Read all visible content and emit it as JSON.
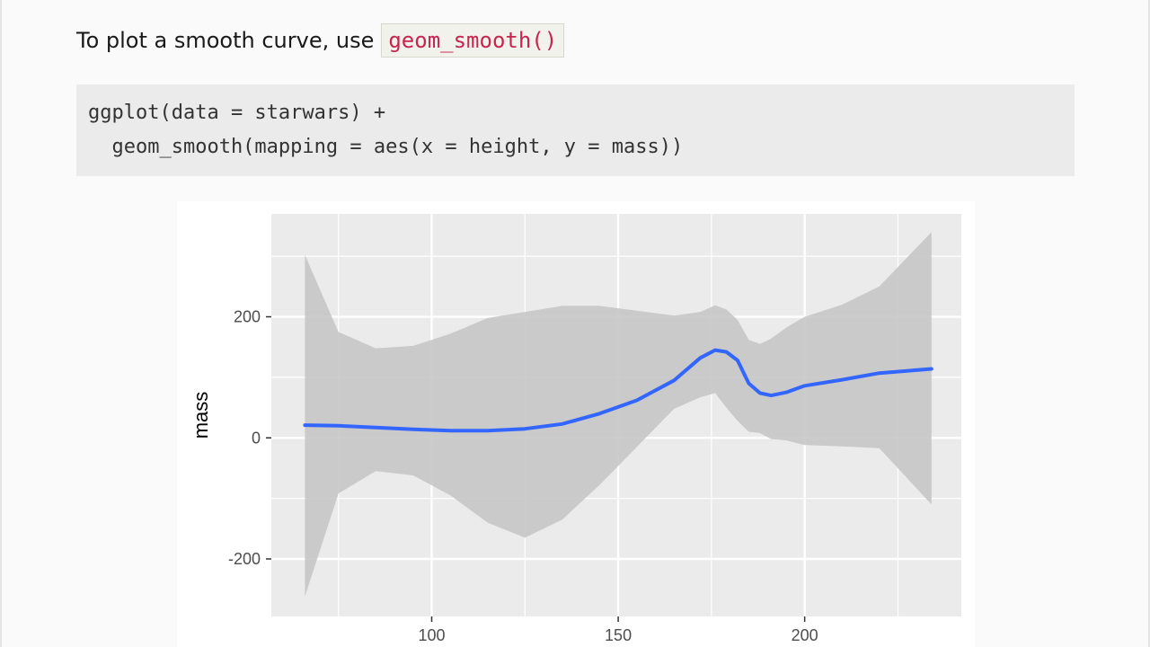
{
  "intro": {
    "text": "To plot a smooth curve, use",
    "code": "geom_smooth()"
  },
  "code_block": {
    "lines": [
      "ggplot(data = starwars) +",
      "  geom_smooth(mapping = aes(x = height, y = mass))"
    ]
  },
  "colors": {
    "panel": "#ebebeb",
    "grid": "#ffffff",
    "ribbon": "#c7c7c7",
    "line": "#3366ff",
    "inline_code_text": "#c7254e"
  },
  "chart_data": {
    "type": "line",
    "xlabel": "",
    "ylabel": "mass",
    "xlim": [
      57,
      242
    ],
    "ylim": [
      -295,
      370
    ],
    "x_ticks": [
      100,
      150,
      200
    ],
    "x_tick_labels": [
      "100",
      "150",
      "200"
    ],
    "y_ticks": [
      -200,
      0,
      200
    ],
    "y_tick_labels": [
      "-200",
      "0",
      "200"
    ],
    "grid": true,
    "series": [
      {
        "type": "smooth",
        "x": [
          66,
          75,
          85,
          95,
          105,
          115,
          125,
          135,
          145,
          155,
          165,
          172,
          176,
          179,
          182,
          185,
          188,
          191,
          195,
          200,
          210,
          220,
          234
        ],
        "y": [
          21,
          20,
          17,
          14,
          12,
          12,
          15,
          23,
          40,
          62,
          95,
          132,
          145,
          142,
          128,
          90,
          74,
          70,
          75,
          86,
          96,
          107,
          114
        ],
        "ymin": [
          -262,
          -92,
          -55,
          -62,
          -95,
          -140,
          -165,
          -135,
          -78,
          -15,
          48,
          67,
          74,
          50,
          28,
          10,
          8,
          -2,
          -4,
          -12,
          -14,
          -17,
          -110
        ],
        "ymax": [
          302,
          175,
          148,
          152,
          172,
          198,
          208,
          218,
          218,
          210,
          202,
          208,
          219,
          212,
          195,
          162,
          155,
          164,
          182,
          200,
          220,
          250,
          340
        ]
      }
    ]
  }
}
